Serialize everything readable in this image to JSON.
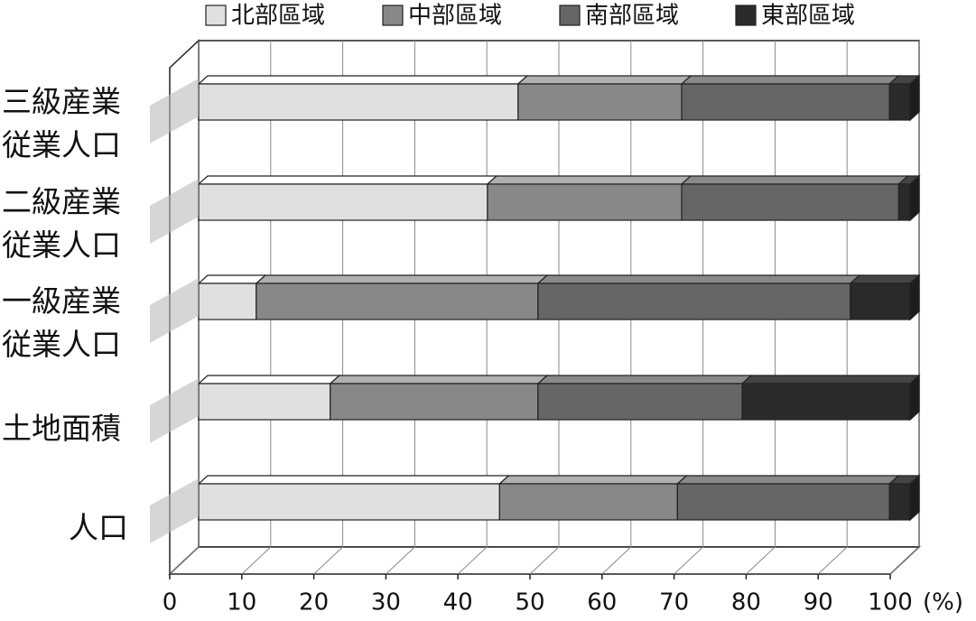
{
  "chart_data": {
    "type": "bar",
    "orientation": "horizontal",
    "stacked": true,
    "categories": [
      "三級産業従業人口",
      "二級産業従業人口",
      "一級産業従業人口",
      "土地面積",
      "人口"
    ],
    "series": [
      {
        "name": "北部區域",
        "color": "#e0e0e0",
        "values": [
          44.9,
          40.6,
          8.1,
          18.5,
          42.3
        ]
      },
      {
        "name": "中部區域",
        "color": "#888888",
        "values": [
          23.0,
          27.3,
          39.6,
          29.2,
          25.0
        ]
      },
      {
        "name": "南部區域",
        "color": "#666666",
        "values": [
          29.2,
          30.5,
          43.9,
          28.7,
          29.8
        ]
      },
      {
        "name": "東部區域",
        "color": "#2a2a2a",
        "values": [
          2.9,
          1.6,
          8.4,
          23.6,
          2.9
        ]
      }
    ],
    "x_label": "(%)",
    "xlim": [
      0,
      100
    ],
    "xticks": [
      0,
      10,
      20,
      30,
      40,
      50,
      60,
      70,
      80,
      90,
      100
    ],
    "grid": true,
    "legend": "top"
  }
}
